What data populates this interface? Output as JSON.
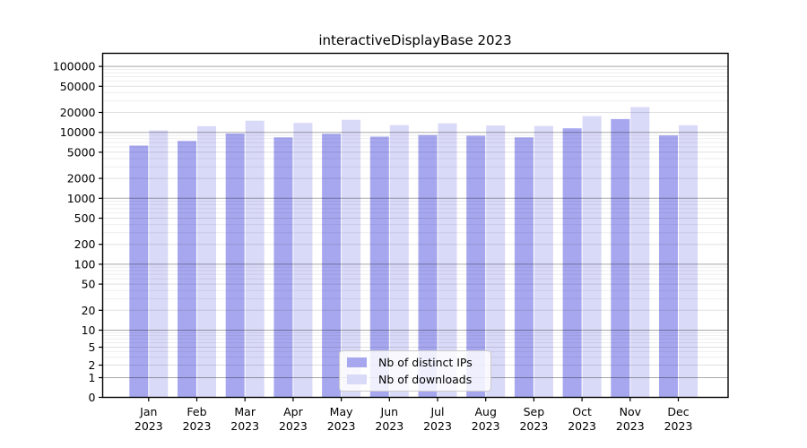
{
  "title": "interactiveDisplayBase 2023",
  "chart_data": {
    "type": "bar",
    "title": "interactiveDisplayBase 2023",
    "categories": [
      "Jan",
      "Feb",
      "Mar",
      "Apr",
      "May",
      "Jun",
      "Jul",
      "Aug",
      "Sep",
      "Oct",
      "Nov",
      "Dec"
    ],
    "year_label": "2023",
    "series": [
      {
        "name": "Nb of distinct IPs",
        "color": "#a7a7f0",
        "values": [
          6300,
          7400,
          9600,
          8400,
          9500,
          8600,
          9100,
          8900,
          8400,
          11500,
          15900,
          9000
        ]
      },
      {
        "name": "Nb of downloads",
        "color": "#d9d9f8",
        "values": [
          10700,
          12400,
          15000,
          13900,
          15500,
          12900,
          13700,
          12700,
          12500,
          17600,
          24200,
          12800
        ]
      }
    ],
    "xlabel": "",
    "ylabel": "",
    "yscale": "symlog",
    "y_ticks": [
      0,
      1,
      2,
      5,
      10,
      20,
      50,
      100,
      200,
      500,
      1000,
      2000,
      5000,
      10000,
      20000,
      50000,
      100000
    ],
    "ylim": [
      0,
      160000
    ],
    "grid": "both",
    "legend_position": "lower center",
    "axis_color": "#000000",
    "grid_major_color": "#aaaaaa",
    "grid_minor_color": "#ececec"
  }
}
